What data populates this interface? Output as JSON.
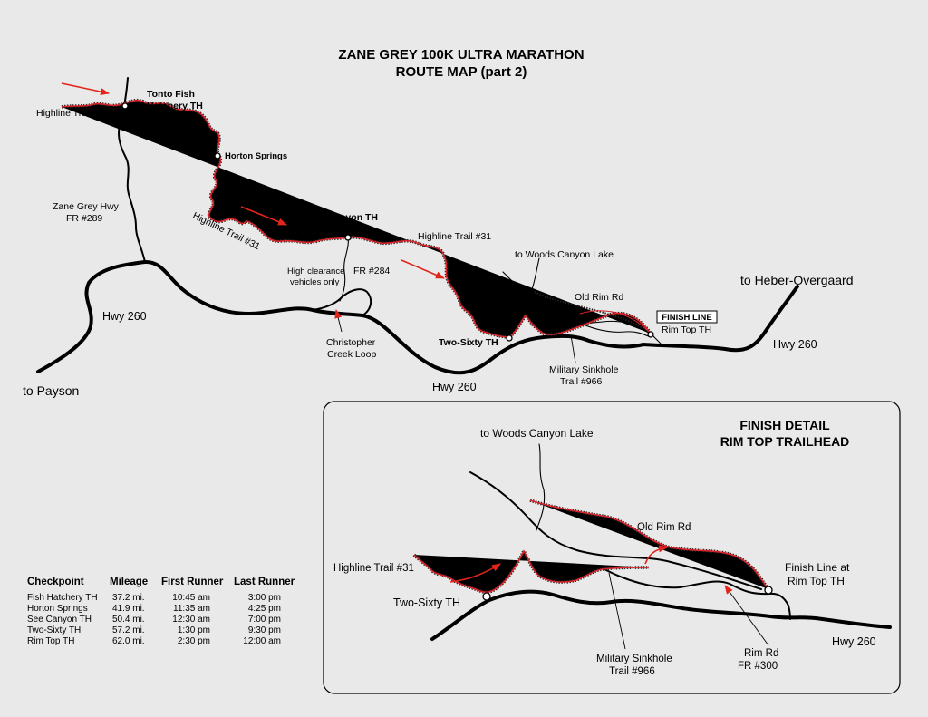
{
  "title": {
    "line1": "ZANE GREY 100K ULTRA MARATHON",
    "line2": "ROUTE MAP   (part 2)"
  },
  "labels": {
    "tonto_fish_1": "Tonto Fish",
    "tonto_fish_2": "Hatchery TH",
    "highline_left": "Highline Trail #31",
    "horton_springs": "Horton Springs",
    "zane_grey_hwy_1": "Zane Grey Hwy",
    "zane_grey_hwy_2": "FR #289",
    "highline_diag": "Highline Trail #31",
    "see_canyon": "See Canyon TH",
    "highline_mid": "Highline Trail #31",
    "to_woods_canyon": "to Woods Canyon Lake",
    "high_clearance_1": "High clearance",
    "high_clearance_2": "vehicles only",
    "fr284": "FR #284",
    "old_rim_rd": "Old Rim Rd",
    "finish_line": "FINISH LINE",
    "rim_top_th": "Rim Top TH",
    "to_heber": "to Heber-Overgaard",
    "hwy260_left": "Hwy 260",
    "hwy260_right": "Hwy 260",
    "hwy260_bottom": "Hwy 260",
    "christopher_1": "Christopher",
    "christopher_2": "Creek Loop",
    "two_sixty": "Two-Sixty TH",
    "military_1": "Military Sinkhole",
    "military_2": "Trail #966",
    "to_payson": "to Payson"
  },
  "inset": {
    "title1": "FINISH DETAIL",
    "title2": "RIM TOP TRAILHEAD",
    "to_woods_canyon": "to Woods Canyon Lake",
    "old_rim_rd": "Old Rim Rd",
    "highline": "Highline Trail #31",
    "two_sixty": "Two-Sixty TH",
    "finish_1": "Finish Line at",
    "finish_2": "Rim Top TH",
    "military_1": "Military Sinkhole",
    "military_2": "Trail #966",
    "rim_rd_1": "Rim Rd",
    "rim_rd_2": "FR #300",
    "hwy260": "Hwy 260"
  },
  "checkpoints": {
    "headers": [
      "Checkpoint",
      "Mileage",
      "First Runner",
      "Last Runner"
    ],
    "rows": [
      [
        "Fish Hatchery TH",
        "37.2 mi.",
        "10:45 am",
        "3:00 pm"
      ],
      [
        "Horton Springs",
        "41.9 mi.",
        "11:35 am",
        "4:25 pm"
      ],
      [
        "See Canyon TH",
        "50.4 mi.",
        "12:30 am",
        "7:00 pm"
      ],
      [
        "Two-Sixty TH",
        "57.2 mi.",
        "1:30 pm",
        "9:30 pm"
      ],
      [
        "Rim Top TH",
        "62.0 mi.",
        "2:30 pm",
        "12:00 am"
      ]
    ]
  },
  "colors": {
    "trail": "#d9232a",
    "arrow": "#e1251b",
    "road": "#000000",
    "background": "#e9e9e9"
  }
}
